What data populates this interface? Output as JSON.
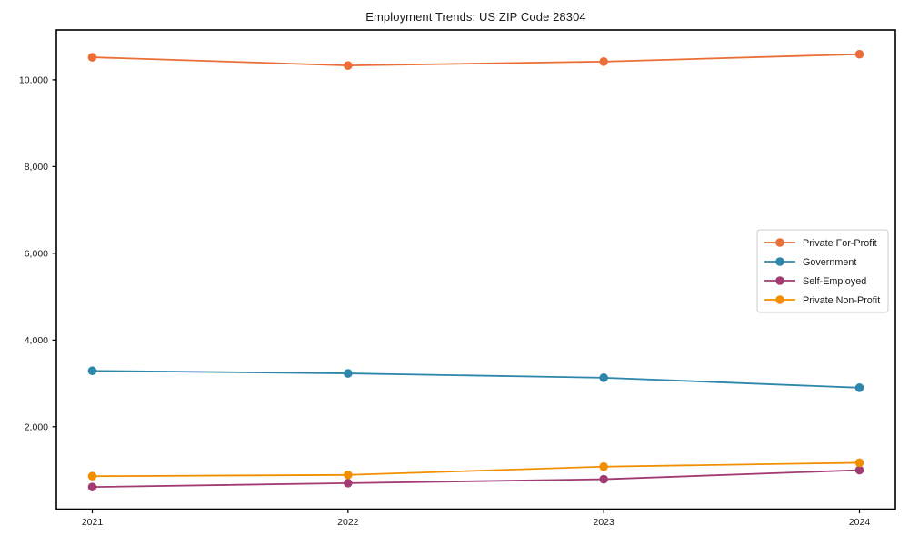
{
  "chart_data": {
    "type": "line",
    "title": "Employment Trends: US ZIP Code 28304",
    "x": [
      "2021",
      "2022",
      "2023",
      "2024"
    ],
    "series": [
      {
        "name": "Private For-Profit",
        "color": "#eb6e38",
        "values": [
          10520,
          10330,
          10420,
          10590
        ]
      },
      {
        "name": "Government",
        "color": "#2e86ab",
        "values": [
          3290,
          3230,
          3130,
          2900
        ]
      },
      {
        "name": "Self-Employed",
        "color": "#a23b72",
        "values": [
          610,
          700,
          790,
          1000
        ]
      },
      {
        "name": "Private Non-Profit",
        "color": "#f18f01",
        "values": [
          860,
          890,
          1080,
          1170
        ]
      }
    ],
    "yticks": [
      2000,
      4000,
      6000,
      8000,
      10000
    ],
    "ylim": [
      100,
      11150
    ],
    "xlabel": "",
    "ylabel": "",
    "grid": false,
    "legend_position": "center-right",
    "marker": "circle",
    "axis_color": "#000000",
    "text_color": "#1a1a1a",
    "legend_border_color": "#cccccc",
    "background": "#ffffff"
  }
}
